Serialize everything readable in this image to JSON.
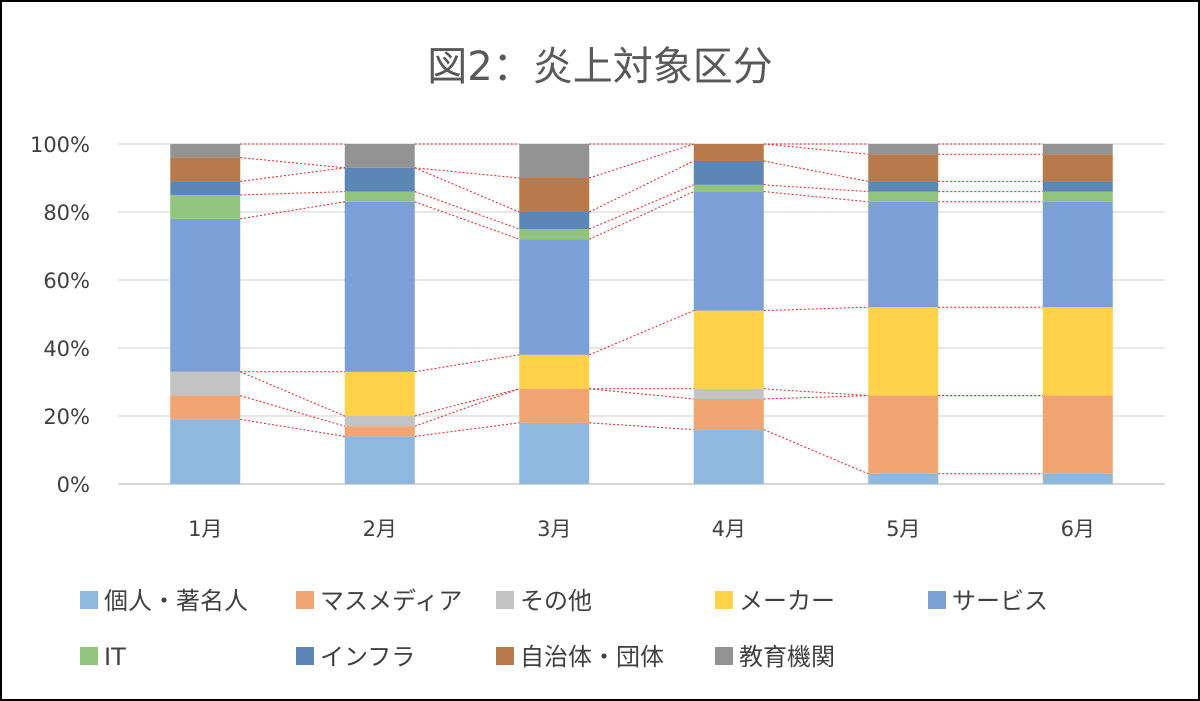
{
  "chart_data": {
    "type": "bar",
    "stacked": "percent",
    "title": "図2：炎上対象区分",
    "categories": [
      "1月",
      "2月",
      "3月",
      "4月",
      "5月",
      "6月"
    ],
    "ylim": [
      0,
      100
    ],
    "yticks": [
      "0%",
      "20%",
      "40%",
      "60%",
      "80%",
      "100%"
    ],
    "grid": true,
    "connector_lines": true,
    "legend_position": "bottom",
    "series": [
      {
        "name": "個人・著名人",
        "color": "#8fb8e0",
        "values": [
          19,
          14,
          18,
          16,
          3,
          3
        ]
      },
      {
        "name": "マスメディア",
        "color": "#f0a572",
        "values": [
          7,
          3,
          10,
          9,
          23,
          23
        ]
      },
      {
        "name": "その他",
        "color": "#c3c3c3",
        "values": [
          7,
          3,
          0,
          3,
          0,
          0
        ]
      },
      {
        "name": "メーカー",
        "color": "#ffd24a",
        "values": [
          0,
          13,
          10,
          23,
          26,
          26
        ]
      },
      {
        "name": "サービス",
        "color": "#7b9fd6",
        "values": [
          45,
          50,
          34,
          35,
          31,
          31
        ]
      },
      {
        "name": "IT",
        "color": "#93c47d",
        "values": [
          7,
          3,
          3,
          2,
          3,
          3
        ]
      },
      {
        "name": "インフラ",
        "color": "#5b86b5",
        "values": [
          4,
          7,
          5,
          7,
          3,
          3
        ]
      },
      {
        "name": "自治体・団体",
        "color": "#b87a4b",
        "values": [
          7,
          0,
          10,
          5,
          8,
          8
        ]
      },
      {
        "name": "教育機関",
        "color": "#939393",
        "values": [
          4,
          7,
          10,
          0,
          3,
          3
        ]
      }
    ]
  }
}
